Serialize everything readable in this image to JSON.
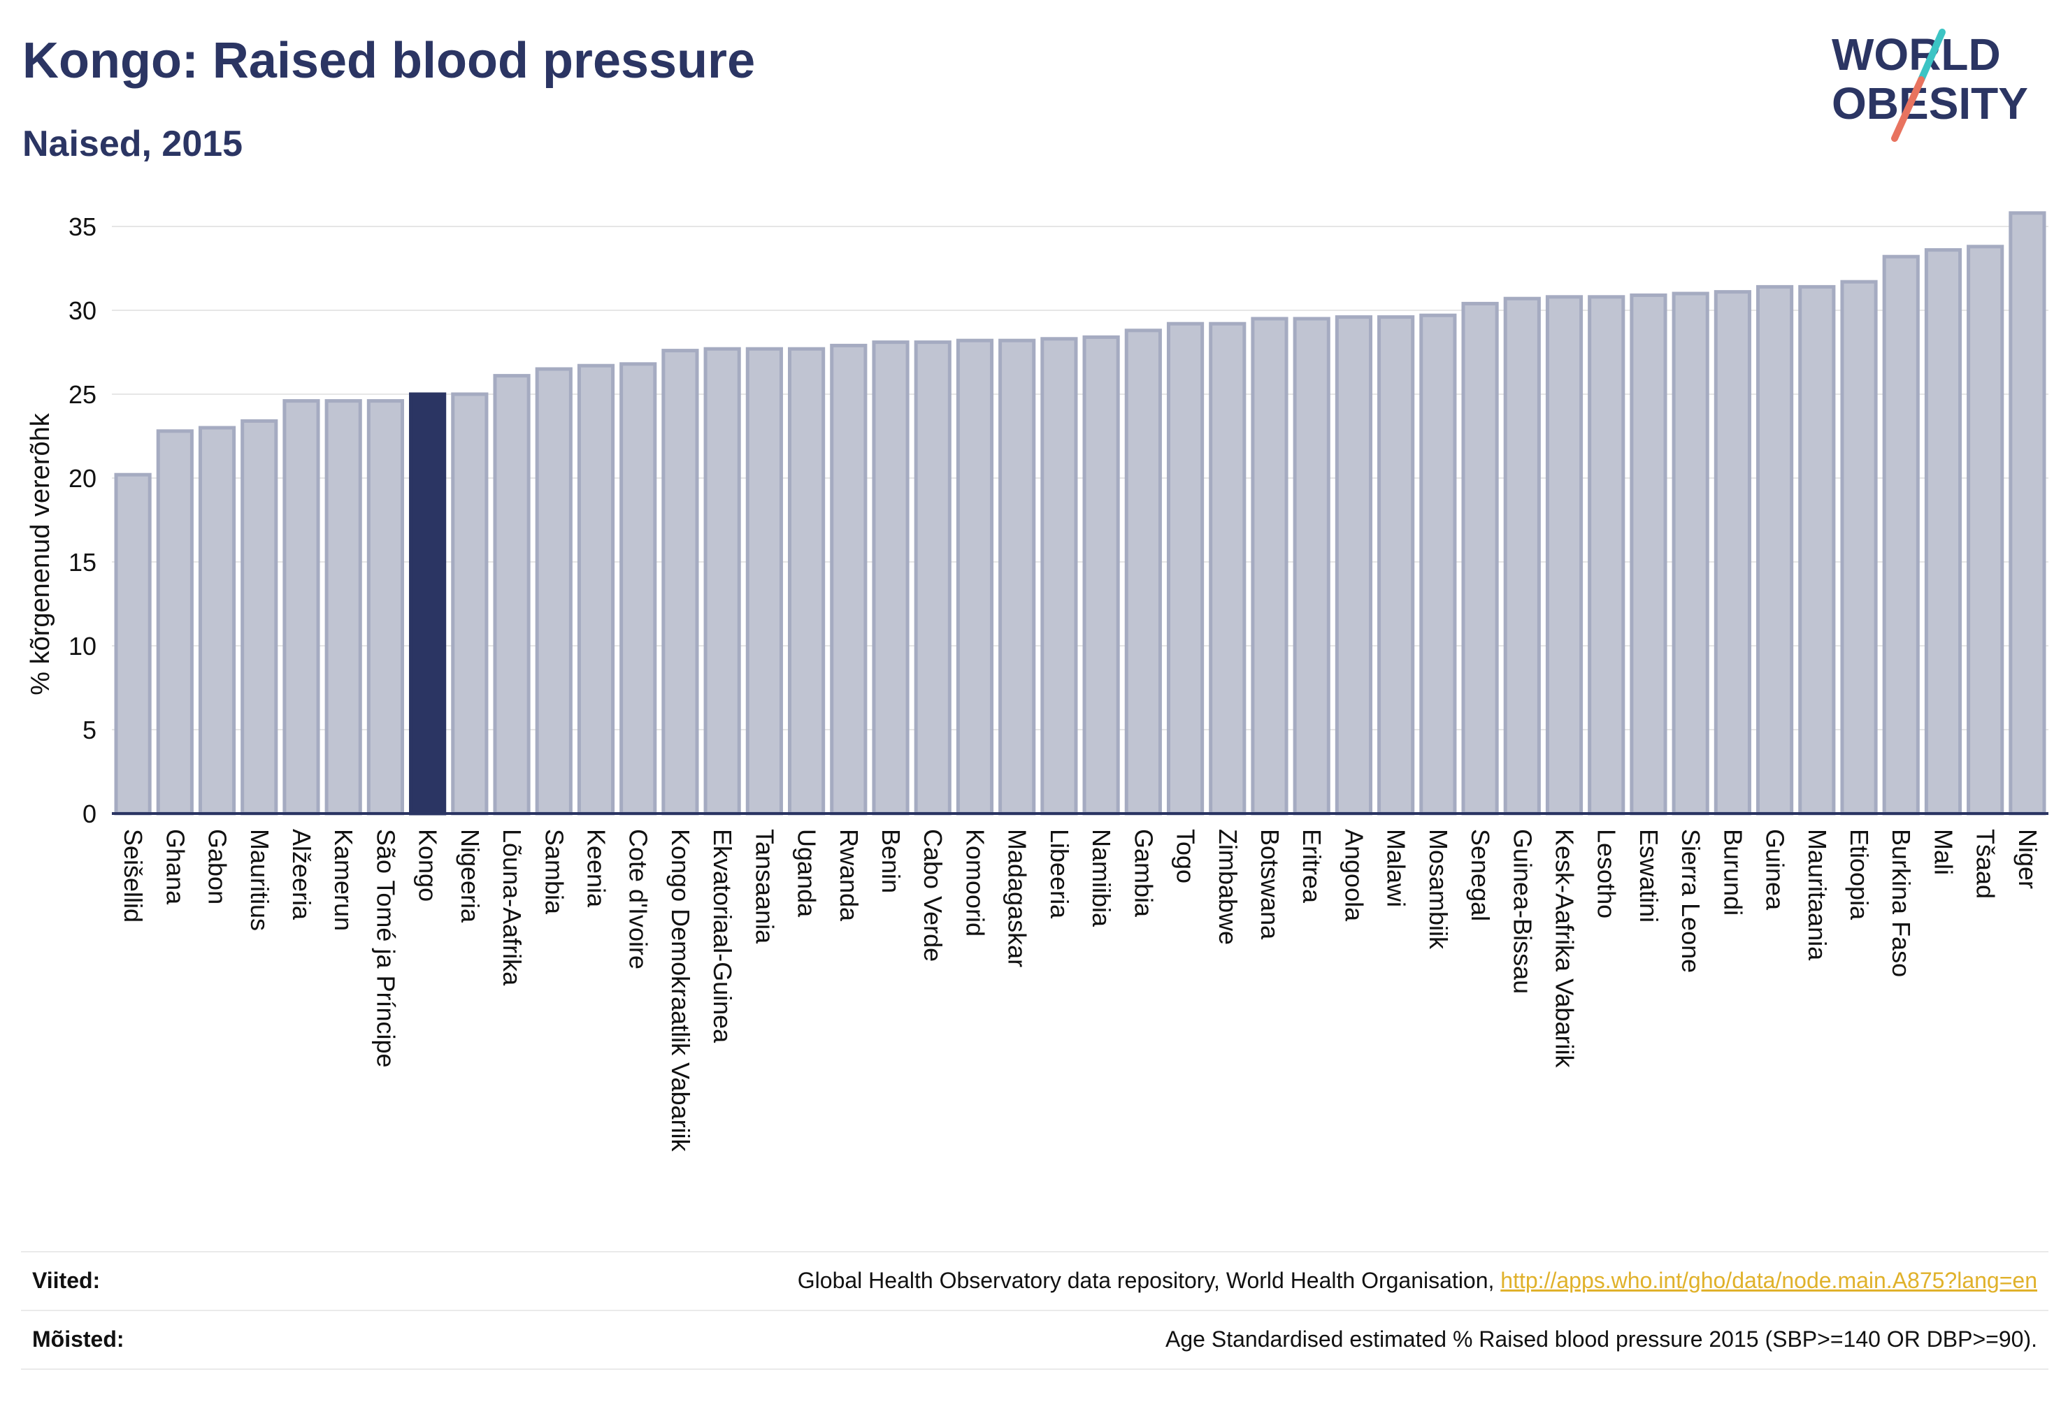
{
  "header": {
    "title": "Kongo: Raised blood pressure",
    "subtitle": "Naised, 2015"
  },
  "logo": {
    "line1": "WORLD",
    "line2": "OBESITY"
  },
  "colors": {
    "highlight_bar": "#2b3563",
    "default_bar": "#c0c4d2",
    "default_bar_stroke": "#a5abc1",
    "axis": "#2b3563",
    "grid": "#e6e6e6",
    "logo_teal": "#3cc4c4",
    "logo_coral": "#e8735f"
  },
  "chart_data": {
    "type": "bar",
    "ylabel": "% kõrgenenud vererõhk",
    "ylim": [
      0,
      36
    ],
    "yticks": [
      0,
      5,
      10,
      15,
      20,
      25,
      30,
      35
    ],
    "grid": true,
    "highlight": "Kongo",
    "categories": [
      "Seišellid",
      "Ghana",
      "Gabon",
      "Mauritius",
      "Alžeeria",
      "Kamerun",
      "São Tomé ja Príncipe",
      "Kongo",
      "Nigeeria",
      "Lõuna-Aafrika",
      "Sambia",
      "Keenia",
      "Cote d'Ivoire",
      "Kongo Demokraatlik Vabariik",
      "Ekvatoriaal-Guinea",
      "Tansaania",
      "Uganda",
      "Rwanda",
      "Benin",
      "Cabo Verde",
      "Komoorid",
      "Madagaskar",
      "Libeeria",
      "Namiibia",
      "Gambia",
      "Togo",
      "Zimbabwe",
      "Botswana",
      "Eritrea",
      "Angoola",
      "Malawi",
      "Mosambiik",
      "Senegal",
      "Guinea-Bissau",
      "Kesk-Aafrika Vabariik",
      "Lesotho",
      "Eswatini",
      "Sierra Leone",
      "Burundi",
      "Guinea",
      "Mauritaania",
      "Etioopia",
      "Burkina Faso",
      "Mali",
      "Tšaad",
      "Niger"
    ],
    "values": [
      20.2,
      22.8,
      23.0,
      23.4,
      24.6,
      24.6,
      24.6,
      25.0,
      25.0,
      26.1,
      26.5,
      26.7,
      26.8,
      27.6,
      27.7,
      27.7,
      27.7,
      27.9,
      28.1,
      28.1,
      28.2,
      28.2,
      28.3,
      28.4,
      28.8,
      29.2,
      29.2,
      29.5,
      29.5,
      29.6,
      29.6,
      29.7,
      30.4,
      30.7,
      30.8,
      30.8,
      30.9,
      31.0,
      31.1,
      31.4,
      31.4,
      31.7,
      33.2,
      33.6,
      33.8,
      35.8
    ]
  },
  "footer": {
    "references_label": "Viited:",
    "references_text": "Global Health Observatory data repository, World Health Organisation, ",
    "references_link": "http://apps.who.int/gho/data/node.main.A875?lang=en",
    "definitions_label": "Mõisted:",
    "definitions_text": "Age Standardised estimated % Raised blood pressure 2015 (SBP>=140 OR DBP>=90)."
  }
}
